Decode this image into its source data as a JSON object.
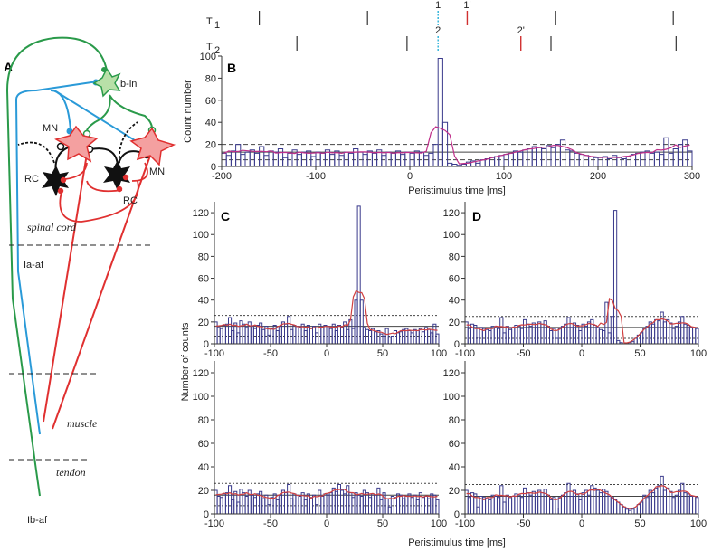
{
  "panel_a": {
    "letter": "A",
    "labels": {
      "ib_in": "Ib-in",
      "mn_left": "MN",
      "mn_right": "MN",
      "rc_left": "RC",
      "rc_right": "RC",
      "spinal_cord": "spinal cord",
      "ia_af": "Ia-af",
      "muscle": "muscle",
      "tendon": "tendon",
      "ib_af": "Ib-af"
    },
    "colors": {
      "ib": "#2a9a4a",
      "ia": "#2a9ad8",
      "mn": "#e03030",
      "mn_fill": "#f4a0a0",
      "ib_in_fill": "#b8e0a8",
      "rc": "#111111"
    }
  },
  "spike_trains": {
    "rows": [
      {
        "label": "T",
        "sub": "1",
        "black": [
          -160,
          -45,
          155,
          280
        ],
        "marker": {
          "label": "1",
          "time": 30,
          "color": "#29b0d8"
        },
        "delayed": {
          "label": "1'",
          "time": 61,
          "color": "#d03030"
        }
      },
      {
        "label": "T",
        "sub": "2",
        "black": [
          -120,
          -3,
          150,
          283
        ],
        "marker": {
          "label": "2",
          "time": 30,
          "color": "#29b0d8"
        },
        "delayed": {
          "label": "2'",
          "time": 118,
          "color": "#d03030"
        }
      }
    ]
  },
  "chart_data": [
    {
      "id": "B",
      "letter": "B",
      "type": "bar",
      "xlabel": "Peristimulus time [ms]",
      "ylabel": "Count number",
      "xlim": [
        -200,
        300
      ],
      "ylim": [
        0,
        100
      ],
      "xticks": [
        -200,
        -100,
        0,
        100,
        200,
        300
      ],
      "yticks": [
        0,
        20,
        40,
        60,
        80,
        100
      ],
      "bin_start": -200,
      "bin_width": 5,
      "values": [
        12,
        10,
        14,
        20,
        11,
        13,
        15,
        12,
        18,
        10,
        14,
        13,
        16,
        8,
        12,
        15,
        11,
        13,
        14,
        9,
        13,
        12,
        15,
        11,
        14,
        10,
        13,
        12,
        16,
        13,
        11,
        14,
        12,
        15,
        10,
        13,
        12,
        14,
        11,
        13,
        12,
        14,
        13,
        10,
        12,
        20,
        98,
        40,
        3,
        2,
        1,
        2,
        4,
        5,
        3,
        6,
        7,
        8,
        9,
        10,
        11,
        12,
        14,
        13,
        15,
        16,
        18,
        17,
        16,
        19,
        17,
        20,
        24,
        15,
        14,
        12,
        11,
        10,
        9,
        8,
        8,
        9,
        7,
        10,
        8,
        7,
        9,
        11,
        12,
        13,
        14,
        12,
        13,
        11,
        26,
        12,
        16,
        20,
        24,
        14
      ],
      "mean": 13,
      "upper": 20,
      "lower": 6,
      "smooth_color": "#c0308a",
      "reference_style": "dashed"
    },
    {
      "id": "C-top",
      "letter": "C",
      "type": "bar",
      "xlim": [
        -100,
        100
      ],
      "ylim": [
        0,
        130
      ],
      "xticks": [
        -100,
        -50,
        0,
        50,
        100
      ],
      "yticks": [
        0,
        20,
        40,
        60,
        80,
        100,
        120
      ],
      "bin_start": -100,
      "bin_width": 2.5,
      "values": [
        20,
        15,
        14,
        17,
        18,
        24,
        12,
        19,
        10,
        21,
        18,
        15,
        20,
        16,
        14,
        17,
        19,
        13,
        16,
        8,
        14,
        17,
        12,
        16,
        20,
        18,
        25,
        13,
        17,
        16,
        15,
        18,
        12,
        17,
        14,
        16,
        10,
        18,
        15,
        17,
        16,
        14,
        18,
        12,
        17,
        15,
        20,
        13,
        22,
        14,
        40,
        126,
        40,
        15,
        13,
        12,
        14,
        11,
        12,
        9,
        7,
        14,
        6,
        7,
        12,
        10,
        11,
        13,
        14,
        12,
        10,
        13,
        12,
        14,
        11,
        15,
        13,
        10,
        18,
        9
      ],
      "mean": 16,
      "upper": 26,
      "lower": 7,
      "smooth_color": "#d04040",
      "reference_style": "dotted"
    },
    {
      "id": "C-bottom",
      "letter": "",
      "type": "bar",
      "xlim": [
        -100,
        100
      ],
      "ylim": [
        0,
        130
      ],
      "xticks": [
        -100,
        -50,
        0,
        50,
        100
      ],
      "yticks": [
        0,
        20,
        40,
        60,
        80,
        100,
        120
      ],
      "bin_start": -100,
      "bin_width": 2.5,
      "values": [
        20,
        15,
        14,
        17,
        18,
        24,
        12,
        19,
        10,
        21,
        18,
        15,
        20,
        16,
        14,
        17,
        19,
        13,
        16,
        8,
        14,
        17,
        12,
        16,
        20,
        18,
        25,
        13,
        17,
        16,
        15,
        18,
        12,
        17,
        14,
        16,
        8,
        20,
        15,
        17,
        16,
        18,
        22,
        19,
        25,
        20,
        17,
        24,
        18,
        14,
        18,
        16,
        15,
        20,
        18,
        14,
        17,
        16,
        22,
        12,
        18,
        13,
        6,
        15,
        14,
        17,
        16,
        13,
        15,
        17,
        14,
        16,
        12,
        18,
        14,
        15,
        13,
        17,
        16,
        12
      ],
      "mean": 16,
      "upper": 26,
      "lower": 7,
      "smooth_color": "#d04040",
      "reference_style": "dotted"
    },
    {
      "id": "D-top",
      "letter": "D",
      "type": "bar",
      "xlim": [
        -100,
        100
      ],
      "ylim": [
        0,
        130
      ],
      "xticks": [
        -100,
        -50,
        0,
        50,
        100
      ],
      "yticks": [
        0,
        20,
        40,
        60,
        80,
        100,
        120
      ],
      "bin_start": -100,
      "bin_width": 2.5,
      "values": [
        20,
        14,
        18,
        17,
        6,
        15,
        14,
        13,
        12,
        16,
        15,
        14,
        24,
        10,
        16,
        13,
        15,
        17,
        16,
        14,
        22,
        18,
        16,
        19,
        15,
        20,
        18,
        21,
        16,
        12,
        14,
        5,
        14,
        16,
        18,
        24,
        15,
        19,
        17,
        12,
        18,
        16,
        20,
        22,
        17,
        15,
        13,
        12,
        38,
        10,
        25,
        122,
        3,
        1,
        0,
        0,
        1,
        2,
        5,
        8,
        10,
        14,
        16,
        20,
        18,
        22,
        21,
        29,
        20,
        22,
        19,
        14,
        16,
        20,
        25,
        18,
        17,
        15,
        15,
        14
      ],
      "mean": 15,
      "upper": 25,
      "lower": 5,
      "smooth_color": "#d04040",
      "reference_style": "dotted"
    },
    {
      "id": "D-bottom",
      "letter": "",
      "type": "bar",
      "xlim": [
        -100,
        100
      ],
      "ylim": [
        0,
        130
      ],
      "xticks": [
        -100,
        -50,
        0,
        50,
        100
      ],
      "yticks": [
        0,
        20,
        40,
        60,
        80,
        100,
        120
      ],
      "bin_start": -100,
      "bin_width": 2.5,
      "values": [
        20,
        14,
        18,
        17,
        6,
        15,
        14,
        13,
        12,
        16,
        15,
        14,
        24,
        10,
        16,
        13,
        15,
        17,
        16,
        14,
        22,
        18,
        16,
        19,
        15,
        20,
        18,
        21,
        16,
        12,
        14,
        5,
        14,
        16,
        18,
        26,
        15,
        20,
        17,
        12,
        18,
        20,
        16,
        24,
        22,
        20,
        18,
        21,
        19,
        15,
        14,
        12,
        10,
        8,
        6,
        4,
        3,
        4,
        5,
        8,
        10,
        16,
        14,
        20,
        18,
        22,
        24,
        32,
        20,
        22,
        19,
        14,
        16,
        20,
        26,
        18,
        17,
        15,
        15,
        14
      ],
      "mean": 15,
      "upper": 25,
      "lower": 5,
      "smooth_color": "#d04040",
      "reference_style": "dotted"
    }
  ],
  "shared_labels": {
    "cd_ylabel": "Number of counts",
    "cd_xlabel": "Peristimulus time [ms]"
  },
  "colors": {
    "histogram": "#3a3a8c",
    "reference": "#444444"
  }
}
